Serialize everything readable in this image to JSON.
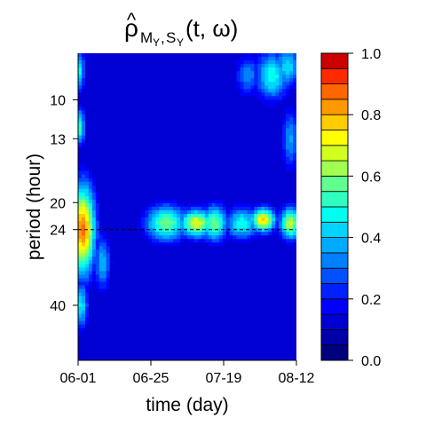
{
  "chart_data": {
    "type": "heatmap",
    "title": {
      "hat": "^",
      "main": "ρ",
      "sub": "M",
      "subsub_y1": "Y",
      "comma": ",",
      "s": "S",
      "subsub_y2": "Y",
      "args": "(t, ω)"
    },
    "xlabel": "time (day)",
    "ylabel": "period (hour)",
    "x_ticks": [
      "06-01",
      "06-25",
      "07-19",
      "08-12"
    ],
    "x_range_days": [
      0,
      72
    ],
    "y_scale": "log",
    "y_range_hours": [
      7.3,
      58
    ],
    "y_ticks": [
      {
        "label": "10",
        "value": 10
      },
      {
        "label": "13",
        "value": 13
      },
      {
        "label": "20",
        "value": 20
      },
      {
        "label": "24",
        "value": 24
      },
      {
        "label": "40",
        "value": 40
      }
    ],
    "reference_line": {
      "period": 24,
      "style": "dashed"
    },
    "colorbar": {
      "range": [
        0,
        1
      ],
      "ticks": [
        "0.0",
        "0.2",
        "0.4",
        "0.6",
        "0.8",
        "1.0"
      ],
      "levels": 20,
      "colors": [
        "#00007F",
        "#0000AA",
        "#0000D4",
        "#0000FF",
        "#0020FF",
        "#0050FF",
        "#0080FF",
        "#00AAFF",
        "#00D4FF",
        "#00FFF0",
        "#30FFC0",
        "#60FF90",
        "#A0FF50",
        "#D0FF20",
        "#FFFF00",
        "#FFCC00",
        "#FF9900",
        "#FF6600",
        "#FF2A00",
        "#CC0000"
      ]
    },
    "background_level": 0.12,
    "features": [
      {
        "day": 1.5,
        "period": 24,
        "value": 0.82,
        "sd_day": 3,
        "sd_logp": 0.22
      },
      {
        "day": 0.5,
        "period": 12,
        "value": 0.48,
        "sd_day": 1.3,
        "sd_logp": 0.09
      },
      {
        "day": 0.5,
        "period": 8.2,
        "value": 0.42,
        "sd_day": 1.2,
        "sd_logp": 0.1
      },
      {
        "day": 0.8,
        "period": 40,
        "value": 0.42,
        "sd_day": 1.8,
        "sd_logp": 0.12
      },
      {
        "day": 8,
        "period": 30,
        "value": 0.35,
        "sd_day": 2,
        "sd_logp": 0.14
      },
      {
        "day": 29,
        "period": 23,
        "value": 0.55,
        "sd_day": 5,
        "sd_logp": 0.09
      },
      {
        "day": 39,
        "period": 23,
        "value": 0.66,
        "sd_day": 4,
        "sd_logp": 0.07
      },
      {
        "day": 45,
        "period": 23,
        "value": 0.55,
        "sd_day": 3,
        "sd_logp": 0.09
      },
      {
        "day": 54,
        "period": 23,
        "value": 0.45,
        "sd_day": 4,
        "sd_logp": 0.08
      },
      {
        "day": 61,
        "period": 22.5,
        "value": 0.72,
        "sd_day": 3,
        "sd_logp": 0.06
      },
      {
        "day": 70,
        "period": 23,
        "value": 0.62,
        "sd_day": 2.5,
        "sd_logp": 0.08
      },
      {
        "day": 64,
        "period": 8.5,
        "value": 0.45,
        "sd_day": 4,
        "sd_logp": 0.12
      },
      {
        "day": 69,
        "period": 8.0,
        "value": 0.4,
        "sd_day": 3,
        "sd_logp": 0.1
      },
      {
        "day": 56,
        "period": 8.5,
        "value": 0.3,
        "sd_day": 3,
        "sd_logp": 0.1
      },
      {
        "day": 70,
        "period": 13,
        "value": 0.32,
        "sd_day": 2,
        "sd_logp": 0.15
      }
    ]
  }
}
